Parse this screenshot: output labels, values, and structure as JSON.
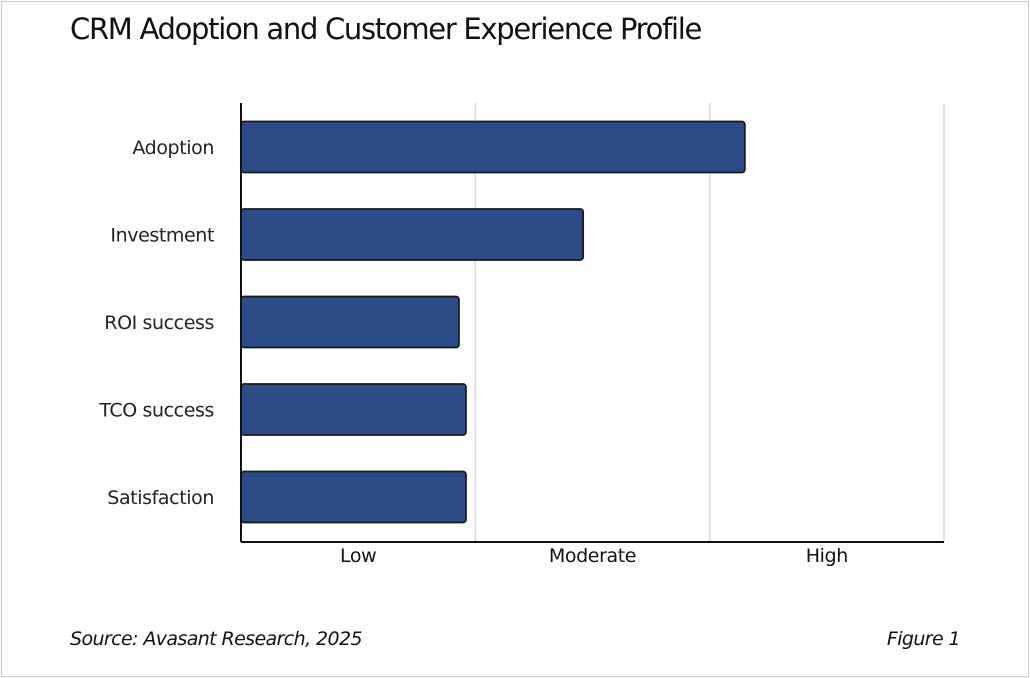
{
  "chart_data": {
    "type": "bar",
    "orientation": "horizontal",
    "title": "CRM Adoption and Customer Experience Profile",
    "categories": [
      "Adoption",
      "Investment",
      "ROI success",
      "TCO success",
      "Satisfaction"
    ],
    "values": [
      2.15,
      1.46,
      0.93,
      0.96,
      0.96
    ],
    "xlim": [
      0,
      3
    ],
    "x_tick_labels": [
      "Low",
      "Moderate",
      "High"
    ],
    "grid": true,
    "bar_color": "#2b4c87",
    "bar_outline_color": "#1a1a1a"
  },
  "footer": {
    "source": "Source: Avasant Research, 2025",
    "figure": "Figure 1"
  }
}
